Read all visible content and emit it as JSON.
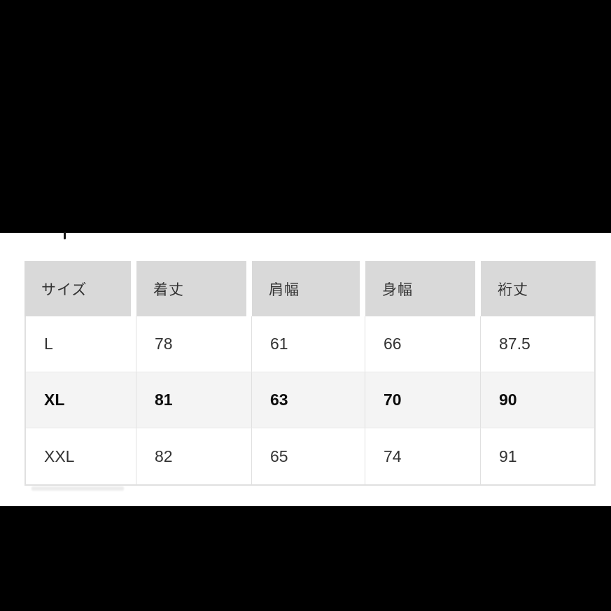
{
  "size_table": {
    "columns": [
      "サイズ",
      "着丈",
      "肩幅",
      "身幅",
      "裄丈"
    ],
    "rows": [
      {
        "size": "L",
        "highlighted": false,
        "measurements": [
          "78",
          "61",
          "66",
          "87.5"
        ]
      },
      {
        "size": "XL",
        "highlighted": true,
        "measurements": [
          "81",
          "63",
          "70",
          "90"
        ]
      },
      {
        "size": "XXL",
        "highlighted": false,
        "measurements": [
          "82",
          "65",
          "74",
          "91"
        ]
      }
    ]
  },
  "chart_data": {
    "type": "table",
    "columns": [
      "サイズ",
      "着丈",
      "肩幅",
      "身幅",
      "裄丈"
    ],
    "rows": [
      [
        "L",
        "78",
        "61",
        "66",
        "87.5"
      ],
      [
        "XL",
        "81",
        "63",
        "70",
        "90"
      ],
      [
        "XXL",
        "82",
        "65",
        "74",
        "91"
      ]
    ],
    "highlighted_row": "XL"
  },
  "colors": {
    "letterbox": "#000000",
    "header_cell_bg": "#d9d9d9",
    "highlight_row_bg": "#f4f4f4",
    "table_border": "#e0e0e0",
    "text": "#333333"
  }
}
